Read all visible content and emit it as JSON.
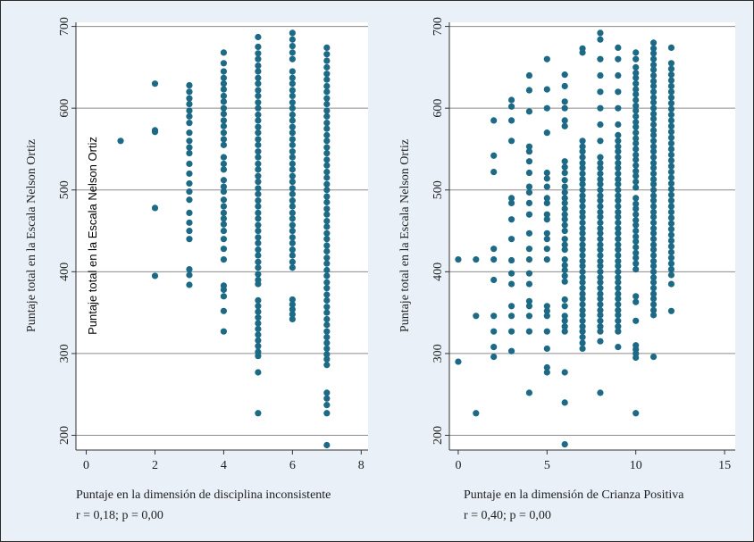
{
  "colors": {
    "marker": "#1d6a86",
    "grid": "#8c8c8c",
    "panel": "#ffffff",
    "background": "#e9f0f7"
  },
  "chart_data": [
    {
      "type": "scatter",
      "ylabel": "Puntaje total en la Escala Nelson Ortiz",
      "xlabel": "Puntaje en la dimensión de disciplina inconsistente",
      "stat": "r = 0,18; p = 0,00",
      "inset_label": "Puntaje total en la Escala Nelson Ortiz",
      "xlim": [
        -0.3,
        8.2
      ],
      "ylim": [
        182,
        705
      ],
      "xticks": [
        0,
        2,
        4,
        6,
        8
      ],
      "yticks": [
        200,
        300,
        400,
        500,
        600,
        700
      ],
      "grid": "horizontal",
      "columns": [
        {
          "x": 1,
          "y": [
            560
          ]
        },
        {
          "x": 2,
          "y": [
            630,
            573,
            571,
            478,
            395
          ]
        },
        {
          "x": 3,
          "y": [
            628,
            620,
            612,
            605,
            597,
            590,
            582,
            570,
            560,
            552,
            545,
            532,
            520,
            508,
            498,
            488,
            472,
            460,
            450,
            440,
            403,
            396,
            384
          ]
        },
        {
          "x": 4,
          "y": [
            668,
            655,
            645,
            637,
            630,
            623,
            615,
            608,
            600,
            593,
            585,
            578,
            570,
            562,
            555,
            540,
            532,
            525,
            512,
            504,
            498,
            488,
            480,
            472,
            465,
            458,
            450,
            440,
            428,
            415,
            383,
            378,
            370,
            352,
            327
          ]
        },
        {
          "x": 5,
          "y": [
            687,
            675,
            667,
            660,
            652,
            645,
            637,
            630,
            622,
            615,
            607,
            600,
            592,
            585,
            577,
            570,
            562,
            555,
            547,
            540,
            532,
            525,
            517,
            510,
            502,
            495,
            487,
            480,
            472,
            465,
            457,
            450,
            442,
            435,
            427,
            420,
            412,
            405,
            397,
            390,
            385,
            365,
            358,
            351,
            344,
            337,
            330,
            323,
            316,
            309,
            302,
            297,
            277,
            227
          ]
        },
        {
          "x": 6,
          "y": [
            692,
            684,
            676,
            668,
            660,
            645,
            637,
            630,
            622,
            615,
            607,
            600,
            592,
            585,
            577,
            570,
            562,
            555,
            547,
            540,
            532,
            525,
            517,
            510,
            502,
            495,
            487,
            480,
            472,
            465,
            457,
            450,
            442,
            435,
            427,
            420,
            412,
            405,
            366,
            360,
            354,
            348,
            342
          ]
        },
        {
          "x": 7,
          "y": [
            674,
            666,
            658,
            650,
            642,
            635,
            627,
            620,
            612,
            605,
            597,
            590,
            582,
            575,
            567,
            560,
            552,
            545,
            537,
            530,
            522,
            515,
            507,
            500,
            492,
            485,
            477,
            470,
            462,
            455,
            447,
            440,
            432,
            425,
            417,
            410,
            402,
            395,
            387,
            380,
            372,
            365,
            357,
            350,
            342,
            335,
            327,
            320,
            313,
            306,
            299,
            293,
            286,
            252,
            245,
            237,
            227,
            188
          ]
        }
      ]
    },
    {
      "type": "scatter",
      "ylabel": "Puntaje total en la Escala Nelson Ortiz",
      "xlabel": "Puntaje en la dimensión de Crianza Positiva",
      "stat": "r = 0,40; p = 0,00",
      "xlim": [
        -0.5,
        15.6
      ],
      "ylim": [
        182,
        705
      ],
      "xticks": [
        0,
        5,
        10,
        15
      ],
      "yticks": [
        200,
        300,
        400,
        500,
        600,
        700
      ],
      "grid": "horizontal",
      "columns": [
        {
          "x": 0,
          "y": [
            415,
            290
          ]
        },
        {
          "x": 1,
          "y": [
            415,
            346,
            227
          ]
        },
        {
          "x": 2,
          "y": [
            585,
            542,
            522,
            428,
            415,
            390,
            346,
            327,
            308,
            296
          ]
        },
        {
          "x": 3,
          "y": [
            610,
            602,
            585,
            560,
            490,
            484,
            464,
            440,
            414,
            398,
            385,
            358,
            346,
            327,
            303
          ]
        },
        {
          "x": 4,
          "y": [
            640,
            622,
            596,
            553,
            547,
            535,
            521,
            504,
            497,
            484,
            470,
            447,
            428,
            415,
            398,
            385,
            364,
            358,
            346,
            327,
            252
          ]
        },
        {
          "x": 5,
          "y": [
            660,
            623,
            600,
            570,
            521,
            514,
            504,
            490,
            484,
            470,
            464,
            447,
            440,
            428,
            415,
            358,
            352,
            346,
            327,
            306,
            283,
            277
          ]
        },
        {
          "x": 6,
          "y": [
            641,
            627,
            608,
            600,
            585,
            578,
            535,
            528,
            521,
            512,
            504,
            497,
            490,
            484,
            477,
            470,
            464,
            457,
            450,
            440,
            433,
            427,
            415,
            408,
            402,
            395,
            388,
            366,
            358,
            346,
            340,
            333,
            327,
            277,
            240,
            189
          ]
        },
        {
          "x": 7,
          "y": [
            673,
            668,
            560,
            553,
            547,
            540,
            533,
            527,
            520,
            513,
            507,
            500,
            493,
            487,
            480,
            473,
            467,
            460,
            453,
            447,
            440,
            433,
            427,
            420,
            413,
            407,
            400,
            393,
            387,
            380,
            373,
            367,
            360,
            353,
            347,
            340,
            333,
            327,
            320,
            313,
            306
          ]
        },
        {
          "x": 8,
          "y": [
            692,
            684,
            660,
            640,
            620,
            600,
            580,
            560,
            540,
            533,
            527,
            520,
            513,
            507,
            500,
            493,
            487,
            480,
            473,
            467,
            460,
            453,
            447,
            440,
            433,
            427,
            420,
            413,
            407,
            400,
            393,
            387,
            380,
            373,
            367,
            360,
            353,
            347,
            340,
            333,
            327,
            315,
            252
          ]
        },
        {
          "x": 9,
          "y": [
            674,
            660,
            640,
            620,
            600,
            580,
            567,
            560,
            553,
            547,
            540,
            533,
            527,
            520,
            513,
            507,
            500,
            493,
            487,
            480,
            473,
            467,
            460,
            453,
            447,
            440,
            433,
            427,
            420,
            413,
            407,
            400,
            393,
            387,
            380,
            373,
            367,
            360,
            353,
            347,
            340,
            333,
            327,
            308
          ]
        },
        {
          "x": 10,
          "y": [
            668,
            660,
            650,
            643,
            637,
            630,
            623,
            617,
            610,
            603,
            597,
            590,
            583,
            577,
            570,
            563,
            557,
            550,
            543,
            537,
            530,
            523,
            517,
            510,
            503,
            490,
            483,
            477,
            470,
            463,
            457,
            450,
            443,
            437,
            430,
            423,
            417,
            410,
            403,
            370,
            363,
            340,
            310,
            305,
            300,
            295,
            227
          ]
        },
        {
          "x": 11,
          "y": [
            680,
            673,
            667,
            660,
            653,
            647,
            640,
            633,
            627,
            620,
            613,
            607,
            600,
            593,
            587,
            580,
            573,
            567,
            560,
            553,
            547,
            540,
            533,
            527,
            520,
            513,
            507,
            500,
            493,
            487,
            480,
            473,
            467,
            460,
            453,
            447,
            440,
            433,
            427,
            420,
            413,
            407,
            400,
            393,
            387,
            380,
            373,
            367,
            360,
            353,
            347,
            296
          ]
        },
        {
          "x": 12,
          "y": [
            674,
            655,
            648,
            641,
            634,
            627,
            620,
            613,
            606,
            599,
            592,
            585,
            578,
            571,
            564,
            557,
            550,
            543,
            536,
            529,
            522,
            515,
            508,
            501,
            494,
            487,
            480,
            473,
            466,
            459,
            452,
            445,
            438,
            431,
            424,
            417,
            410,
            403,
            396,
            385,
            352
          ]
        }
      ]
    }
  ]
}
